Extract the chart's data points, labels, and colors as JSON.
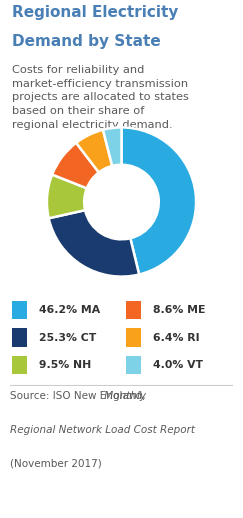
{
  "title_line1": "Regional Electricity",
  "title_line2": "Demand by State",
  "subtitle": "Costs for reliability and\nmarket-efficiency transmission\nprojects are allocated to states\nbased on their share of\nregional electricity demand.",
  "slices": [
    46.2,
    25.3,
    9.5,
    8.6,
    6.4,
    4.0
  ],
  "colors": [
    "#29ABE2",
    "#1A3B6F",
    "#A8C73B",
    "#F26522",
    "#F9A11B",
    "#7DD2E8"
  ],
  "legend_col1_labels": [
    "46.2% MA",
    "25.3% CT",
    "9.5% NH"
  ],
  "legend_col1_colors": [
    "#29ABE2",
    "#1A3B6F",
    "#A8C73B"
  ],
  "legend_col2_labels": [
    "8.6% ME",
    "6.4% RI",
    "4.0% VT"
  ],
  "legend_col2_colors": [
    "#F26522",
    "#F9A11B",
    "#7DD2E8"
  ],
  "source_normal": "Source: ISO New England, ",
  "source_italic": "Monthly\nRegional Network Load Cost Report",
  "source_end": "\n(November 2017)",
  "title_color": "#4A7FB5",
  "body_color": "#5A5A5A",
  "legend_color": "#333333",
  "source_color": "#5A5A5A",
  "bg_color": "#FFFFFF",
  "title_fontsize": 11.0,
  "subtitle_fontsize": 8.2,
  "legend_fontsize": 7.8,
  "source_fontsize": 7.5
}
